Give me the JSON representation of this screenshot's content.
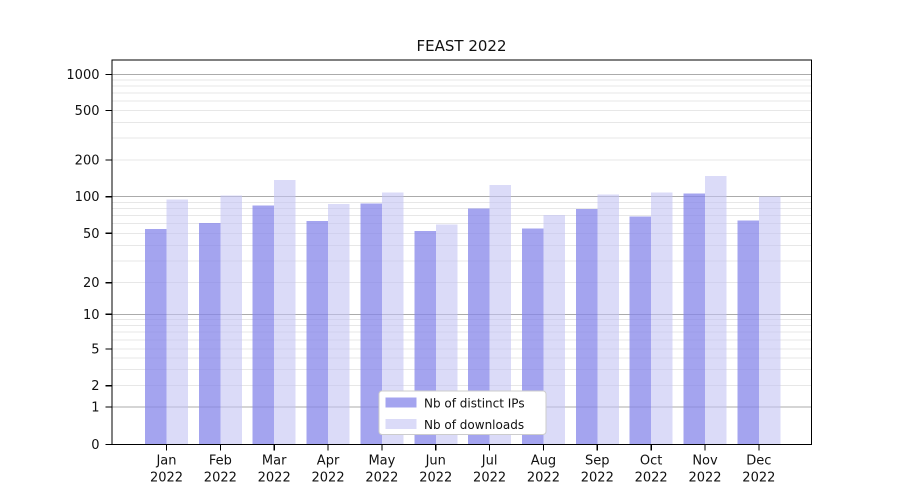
{
  "title": "FEAST 2022",
  "chart_data": {
    "type": "bar",
    "title": "FEAST 2022",
    "categories": [
      "Jan",
      "Feb",
      "Mar",
      "Apr",
      "May",
      "Jun",
      "Jul",
      "Aug",
      "Sep",
      "Oct",
      "Nov",
      "Dec"
    ],
    "category_year": "2022",
    "series": [
      {
        "name": "Nb of distinct IPs",
        "color": "#a4a4ef",
        "fill_alpha": 0.75,
        "values": [
          54,
          61,
          85,
          63,
          88,
          52,
          80,
          55,
          79,
          69,
          106,
          64
        ]
      },
      {
        "name": "Nb of downloads",
        "color": "#dbdbf8",
        "fill_alpha": 0.6,
        "values": [
          95,
          102,
          137,
          87,
          108,
          59,
          125,
          71,
          104,
          108,
          148,
          100
        ]
      }
    ],
    "y_axis": {
      "scale": "symlog",
      "ticks": [
        0,
        1,
        2,
        5,
        10,
        20,
        50,
        100,
        200,
        500,
        1000
      ],
      "range": [
        0,
        1000
      ]
    },
    "x_axis": {
      "tick_label_line2": "2022"
    },
    "legend": {
      "position": "lower center"
    },
    "grid": {
      "major_color": "#ababab",
      "minor_color": "#e7e7e7"
    }
  }
}
